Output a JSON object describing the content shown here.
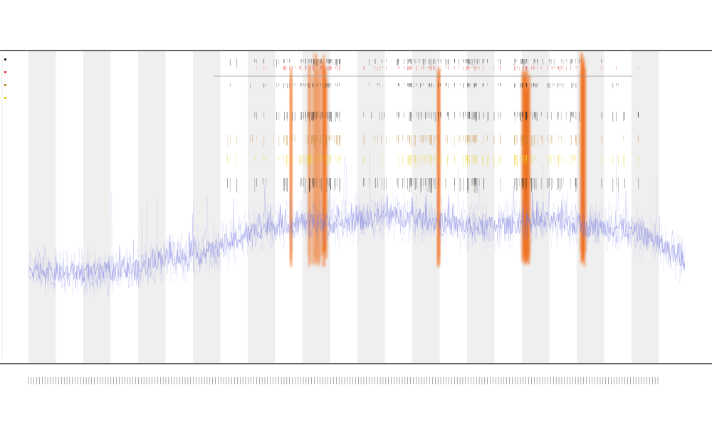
{
  "chart_data": {
    "type": "line",
    "title": "",
    "subtitle_lines": [
      "",
      ""
    ],
    "xlabel": "",
    "ylabel": "",
    "x_tick_count": 230,
    "series": [
      {
        "color": "#6f74e0",
        "profile": [
          [
            0.0,
            0.24
          ],
          [
            0.04,
            0.22
          ],
          [
            0.1,
            0.22
          ],
          [
            0.17,
            0.23
          ],
          [
            0.2,
            0.27
          ],
          [
            0.26,
            0.28
          ],
          [
            0.3,
            0.32
          ],
          [
            0.36,
            0.38
          ],
          [
            0.42,
            0.4
          ],
          [
            0.47,
            0.39
          ],
          [
            0.55,
            0.42
          ],
          [
            0.62,
            0.4
          ],
          [
            0.68,
            0.38
          ],
          [
            0.74,
            0.39
          ],
          [
            0.8,
            0.4
          ],
          [
            0.85,
            0.38
          ],
          [
            0.9,
            0.38
          ],
          [
            0.95,
            0.34
          ],
          [
            1.0,
            0.26
          ]
        ]
      }
    ],
    "highlight_bands": [
      {
        "color": "#f07020",
        "center": 0.44,
        "width": 0.03,
        "strength": 1.0
      },
      {
        "color": "#f07020",
        "center": 0.758,
        "width": 0.012,
        "strength": 0.85
      },
      {
        "color": "#f07020",
        "center": 0.845,
        "width": 0.008,
        "strength": 1.0
      },
      {
        "color": "#f07020",
        "center": 0.625,
        "width": 0.004,
        "strength": 0.45
      },
      {
        "color": "#f07020",
        "center": 0.4,
        "width": 0.003,
        "strength": 0.35
      }
    ],
    "event_clusters": [
      {
        "center": 0.445,
        "spread": 0.03,
        "count": 55
      },
      {
        "center": 0.758,
        "spread": 0.018,
        "count": 40
      },
      {
        "center": 0.63,
        "spread": 0.05,
        "count": 45
      },
      {
        "center": 0.69,
        "spread": 0.03,
        "count": 25
      },
      {
        "center": 0.59,
        "spread": 0.03,
        "count": 25
      },
      {
        "center": 0.81,
        "spread": 0.03,
        "count": 25
      },
      {
        "center": 0.53,
        "spread": 0.02,
        "count": 12
      },
      {
        "center": 0.4,
        "spread": 0.02,
        "count": 12
      },
      {
        "center": 0.34,
        "spread": 0.04,
        "count": 12
      },
      {
        "center": 0.9,
        "spread": 0.03,
        "count": 10
      }
    ],
    "track_colors": [
      "#222222",
      "#e04040",
      "#222222",
      "#111111",
      "#c08020",
      "#e8d010",
      "#222222"
    ],
    "legend_entries": [
      "",
      "",
      "",
      ""
    ],
    "legend_colors": [
      "#222222",
      "#e04040",
      "#c08020",
      "#e8d010"
    ],
    "panel_title_lines": [
      "",
      ""
    ],
    "grid": false,
    "shaded_columns": true
  }
}
